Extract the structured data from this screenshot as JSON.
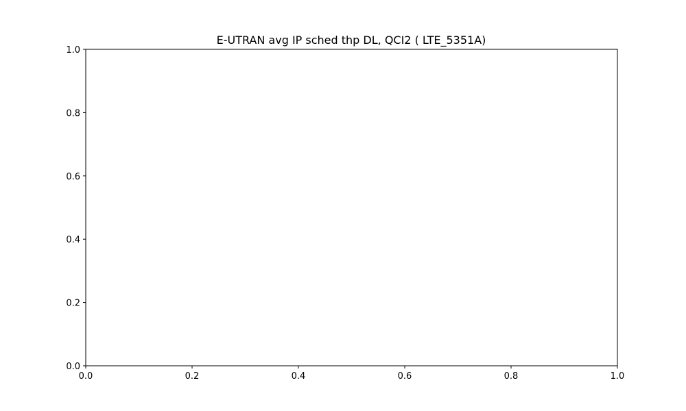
{
  "chart_data": {
    "type": "line",
    "title": "E-UTRAN avg IP sched thp DL, QCI2 ( LTE_5351A)",
    "xlabel": "",
    "ylabel": "",
    "xlim": [
      0.0,
      1.0
    ],
    "ylim": [
      0.0,
      1.0
    ],
    "x_ticks": [
      "0.0",
      "0.2",
      "0.4",
      "0.6",
      "0.8",
      "1.0"
    ],
    "y_ticks": [
      "0.0",
      "0.2",
      "0.4",
      "0.6",
      "0.8",
      "1.0"
    ],
    "grid": false,
    "series": []
  }
}
